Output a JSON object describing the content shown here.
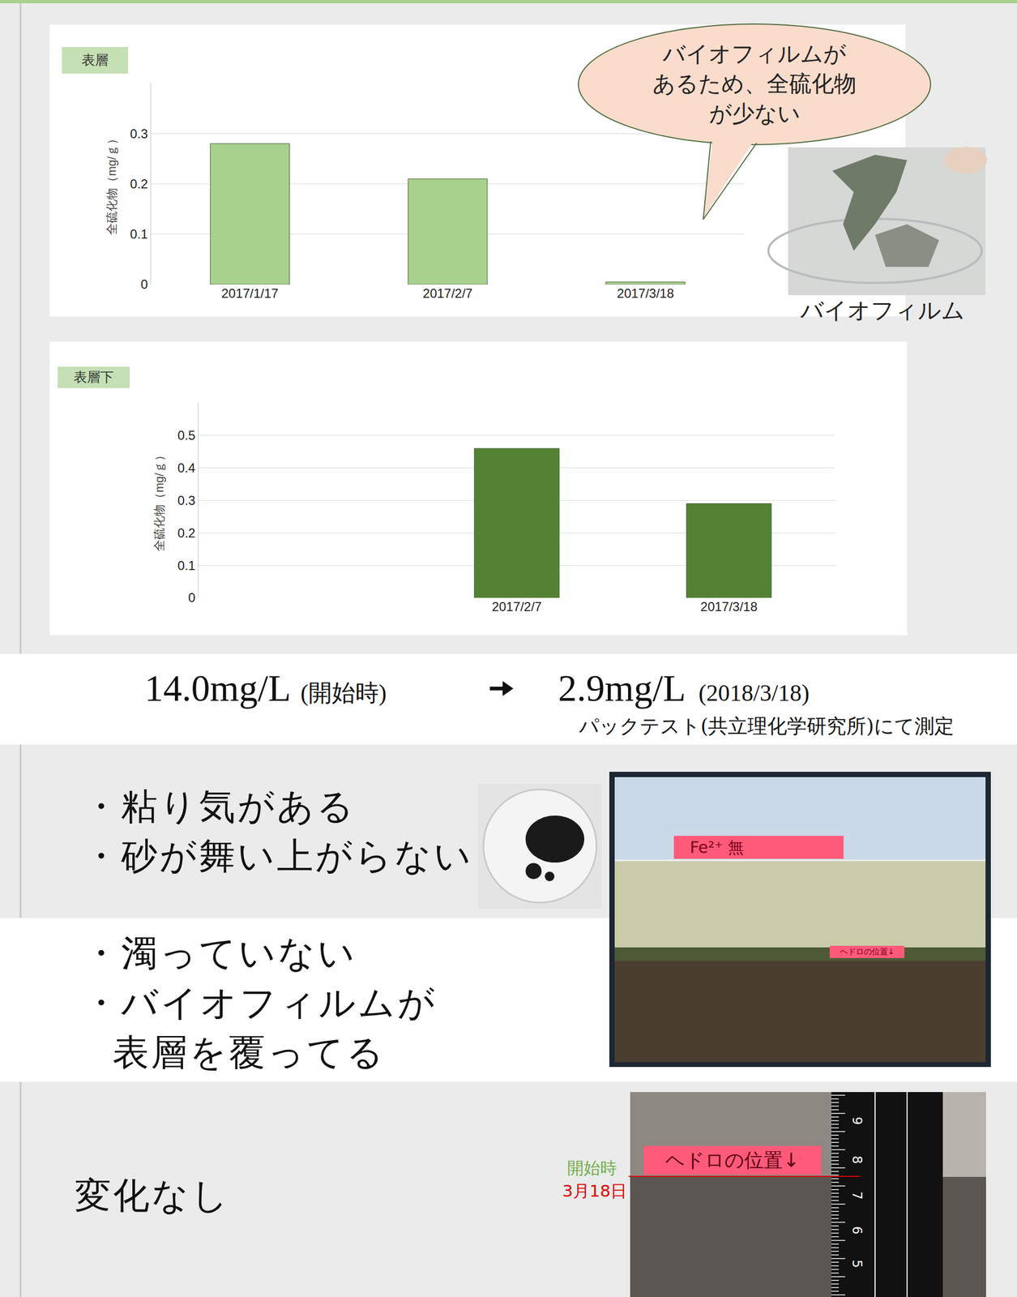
{
  "chart_data": [
    {
      "type": "bar",
      "title": "表層",
      "y_label": "全硫化物（mg/ｇ）",
      "categories": [
        "2017/1/17",
        "2017/2/7",
        "2017/3/18"
      ],
      "values": [
        0.28,
        0.21,
        0.005
      ],
      "color": "#a9d18e",
      "ylim": [
        0,
        0.4
      ],
      "yticks": [
        0,
        0.1,
        0.2,
        0.3
      ],
      "grid": true
    },
    {
      "type": "bar",
      "title": "表層下",
      "y_label": "全硫化物（mg/ｇ）",
      "categories": [
        null,
        "2017/2/7",
        "2017/3/18"
      ],
      "values": [
        null,
        0.46,
        0.29
      ],
      "color": "#548235",
      "ylim": [
        0,
        0.6
      ],
      "yticks": [
        0,
        0.1,
        0.2,
        0.3,
        0.4,
        0.5
      ],
      "grid": true
    }
  ],
  "callout": [
    "バイオフィルムが",
    "あるため、全硫化物",
    "が少ない"
  ],
  "photo_caption": "バイオフィルム",
  "measurement": {
    "start": "14.0mg/L",
    "start_note": "(開始時)",
    "end": "2.9mg/L",
    "end_note": "(2018/3/18)",
    "method": "パックテスト(共立理化学研究所)にて測定"
  },
  "observations": [
    [
      [
        "・粘り気がある"
      ],
      [
        "・砂が舞い上がらない"
      ]
    ],
    [
      [
        "・濁っていない"
      ],
      [
        "・バイオフィルムが",
        "表層を覆ってる"
      ]
    ],
    [
      [
        "変化なし"
      ]
    ]
  ],
  "photo_labels": {
    "tank": "Fe²⁺ 無",
    "sludge": "ヘドロの位置↓",
    "ruler": [
      9,
      8,
      7,
      6,
      5
    ],
    "start": "開始時",
    "end": "3月18日"
  }
}
